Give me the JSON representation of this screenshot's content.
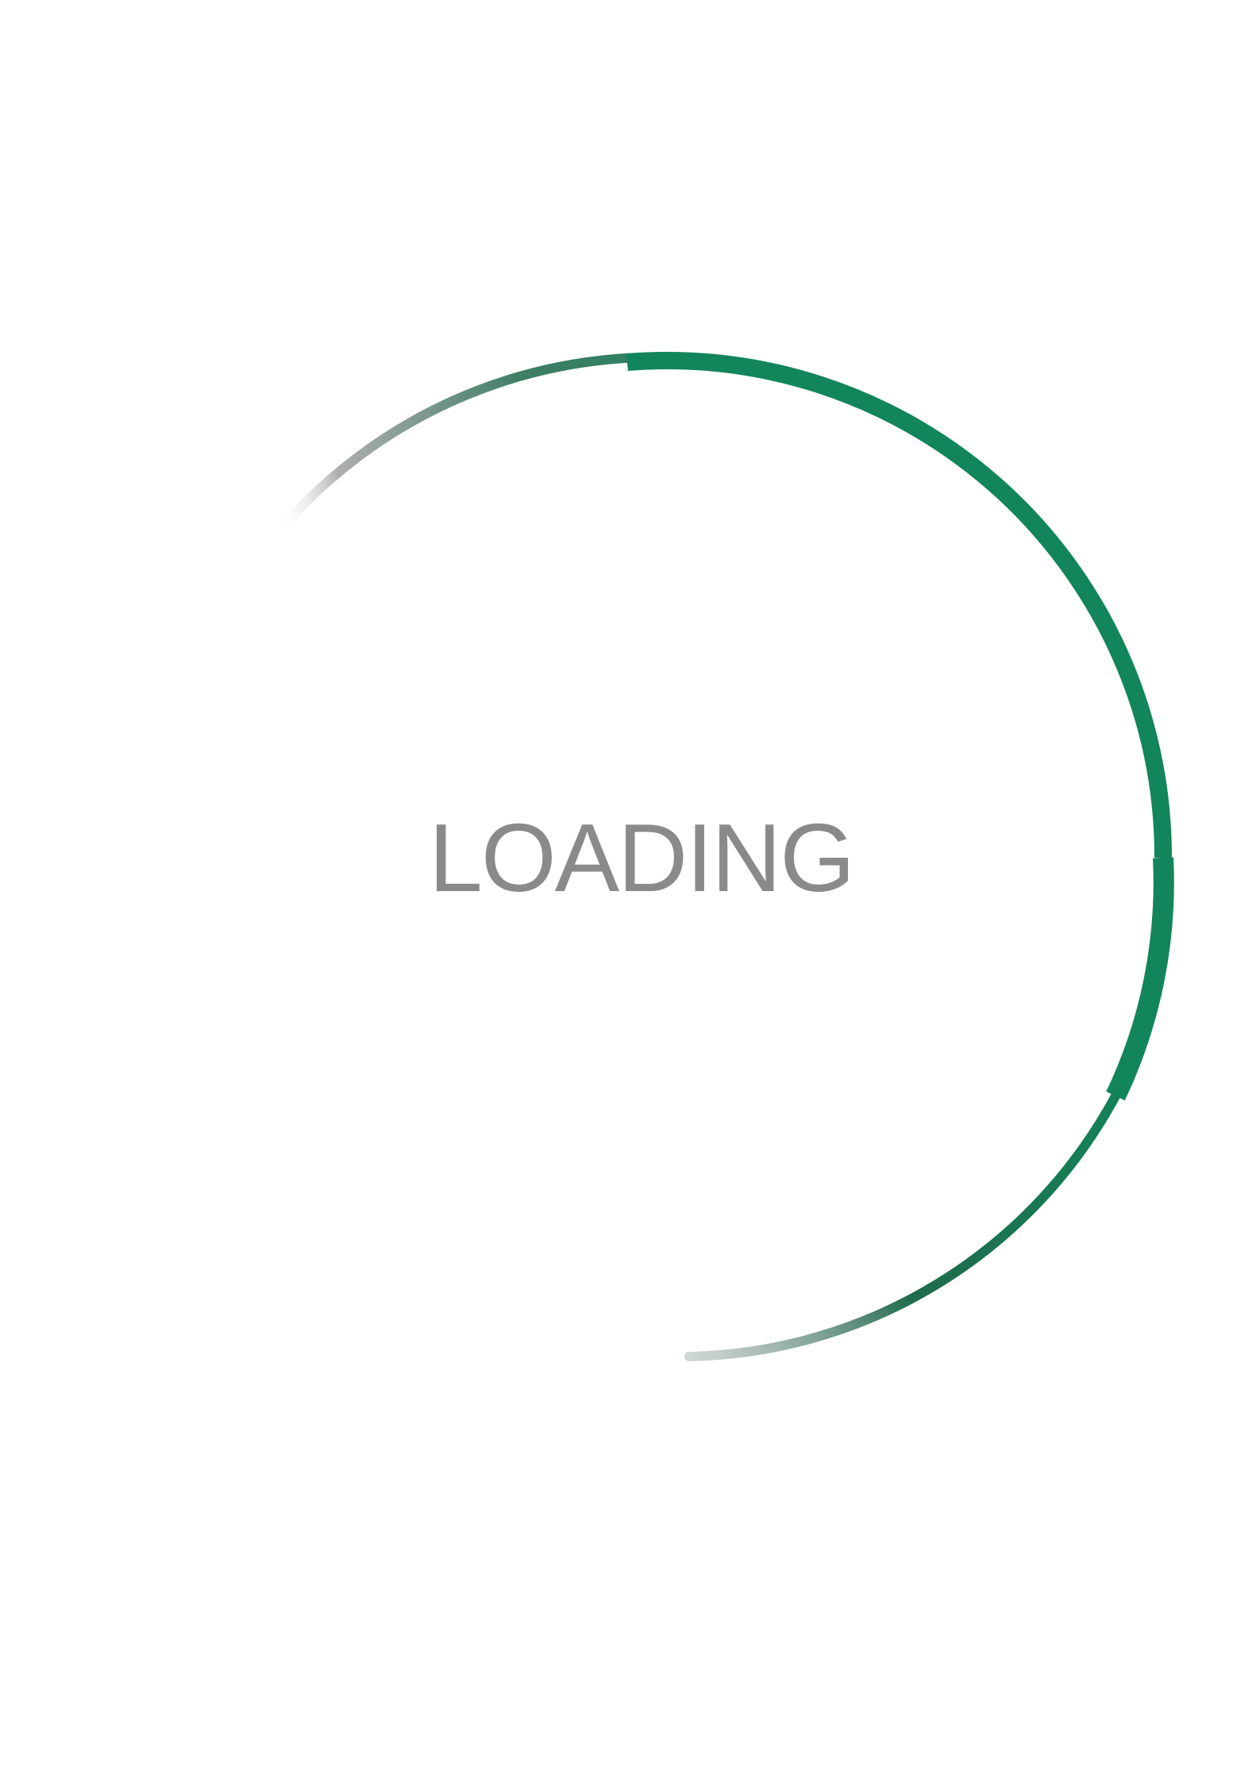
{
  "loader": {
    "label": "LOADING",
    "icon": "spinner-arc-icon",
    "accent_color": "#12855a",
    "fade_color": "#9a9a9a",
    "text_color": "#8a8a8a"
  }
}
